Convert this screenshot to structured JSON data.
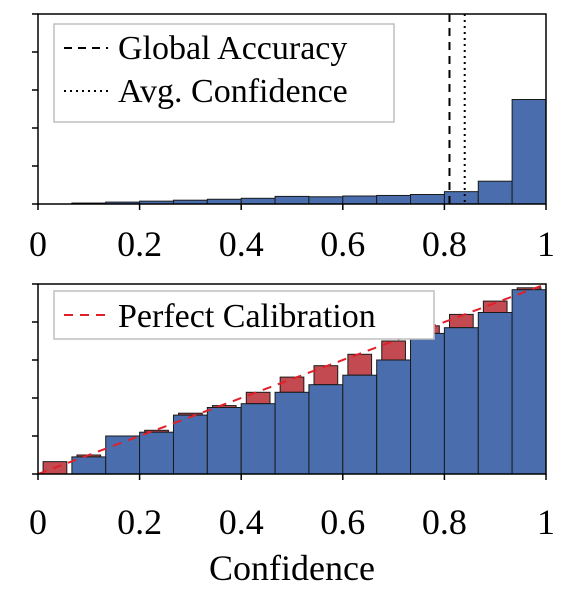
{
  "colors": {
    "bar_fill": "#4a6ead",
    "bar_stroke": "#1a1a1a",
    "gap_fill": "#c24a50",
    "perfect_line": "#e0202a",
    "legend_border": "#bfbfbf"
  },
  "chart_data": [
    {
      "type": "bar",
      "subtype": "confidence-histogram",
      "x_range": [
        0,
        1
      ],
      "bin_edges": [
        0.0,
        0.0667,
        0.1333,
        0.2,
        0.2667,
        0.3333,
        0.4,
        0.4667,
        0.5333,
        0.6,
        0.6667,
        0.7333,
        0.8,
        0.8667,
        0.9333,
        1.0
      ],
      "values": [
        0.0,
        0.005,
        0.01,
        0.015,
        0.02,
        0.025,
        0.03,
        0.04,
        0.038,
        0.042,
        0.045,
        0.05,
        0.065,
        0.12,
        0.55
      ],
      "ylim": [
        0,
        1.0
      ],
      "y_tick_count": 5,
      "x_ticks": [
        "0",
        "0.2",
        "0.4",
        "0.6",
        "0.8",
        "1"
      ],
      "x_tick_values": [
        0,
        0.2,
        0.4,
        0.6,
        0.8,
        1.0
      ],
      "reference_lines": [
        {
          "name": "Global Accuracy",
          "value": 0.81,
          "style": "dashed"
        },
        {
          "name": "Avg. Confidence",
          "value": 0.84,
          "style": "dotted"
        }
      ],
      "legend": [
        "Global Accuracy",
        "Avg. Confidence"
      ],
      "legend_position": "top-left",
      "grid": false
    },
    {
      "type": "bar",
      "subtype": "reliability-diagram",
      "x_range": [
        0,
        1
      ],
      "ylim": [
        0,
        1
      ],
      "bin_edges": [
        0.0,
        0.0667,
        0.1333,
        0.2,
        0.2667,
        0.3333,
        0.4,
        0.4667,
        0.5333,
        0.6,
        0.6667,
        0.7333,
        0.8,
        0.8667,
        0.9333,
        1.0
      ],
      "accuracy": [
        0.0,
        0.09,
        0.2,
        0.22,
        0.31,
        0.35,
        0.37,
        0.43,
        0.47,
        0.52,
        0.6,
        0.74,
        0.77,
        0.85,
        0.97
      ],
      "expected": [
        0.065,
        0.1,
        0.175,
        0.23,
        0.32,
        0.36,
        0.43,
        0.51,
        0.57,
        0.63,
        0.7,
        0.78,
        0.84,
        0.91,
        0.98
      ],
      "x_ticks": [
        "0",
        "0.2",
        "0.4",
        "0.6",
        "0.8",
        "1"
      ],
      "x_tick_values": [
        0,
        0.2,
        0.4,
        0.6,
        0.8,
        1.0
      ],
      "y_tick_count": 5,
      "xlabel": "Confidence",
      "legend": [
        "Perfect Calibration"
      ],
      "legend_position": "top-left",
      "grid": false
    }
  ]
}
